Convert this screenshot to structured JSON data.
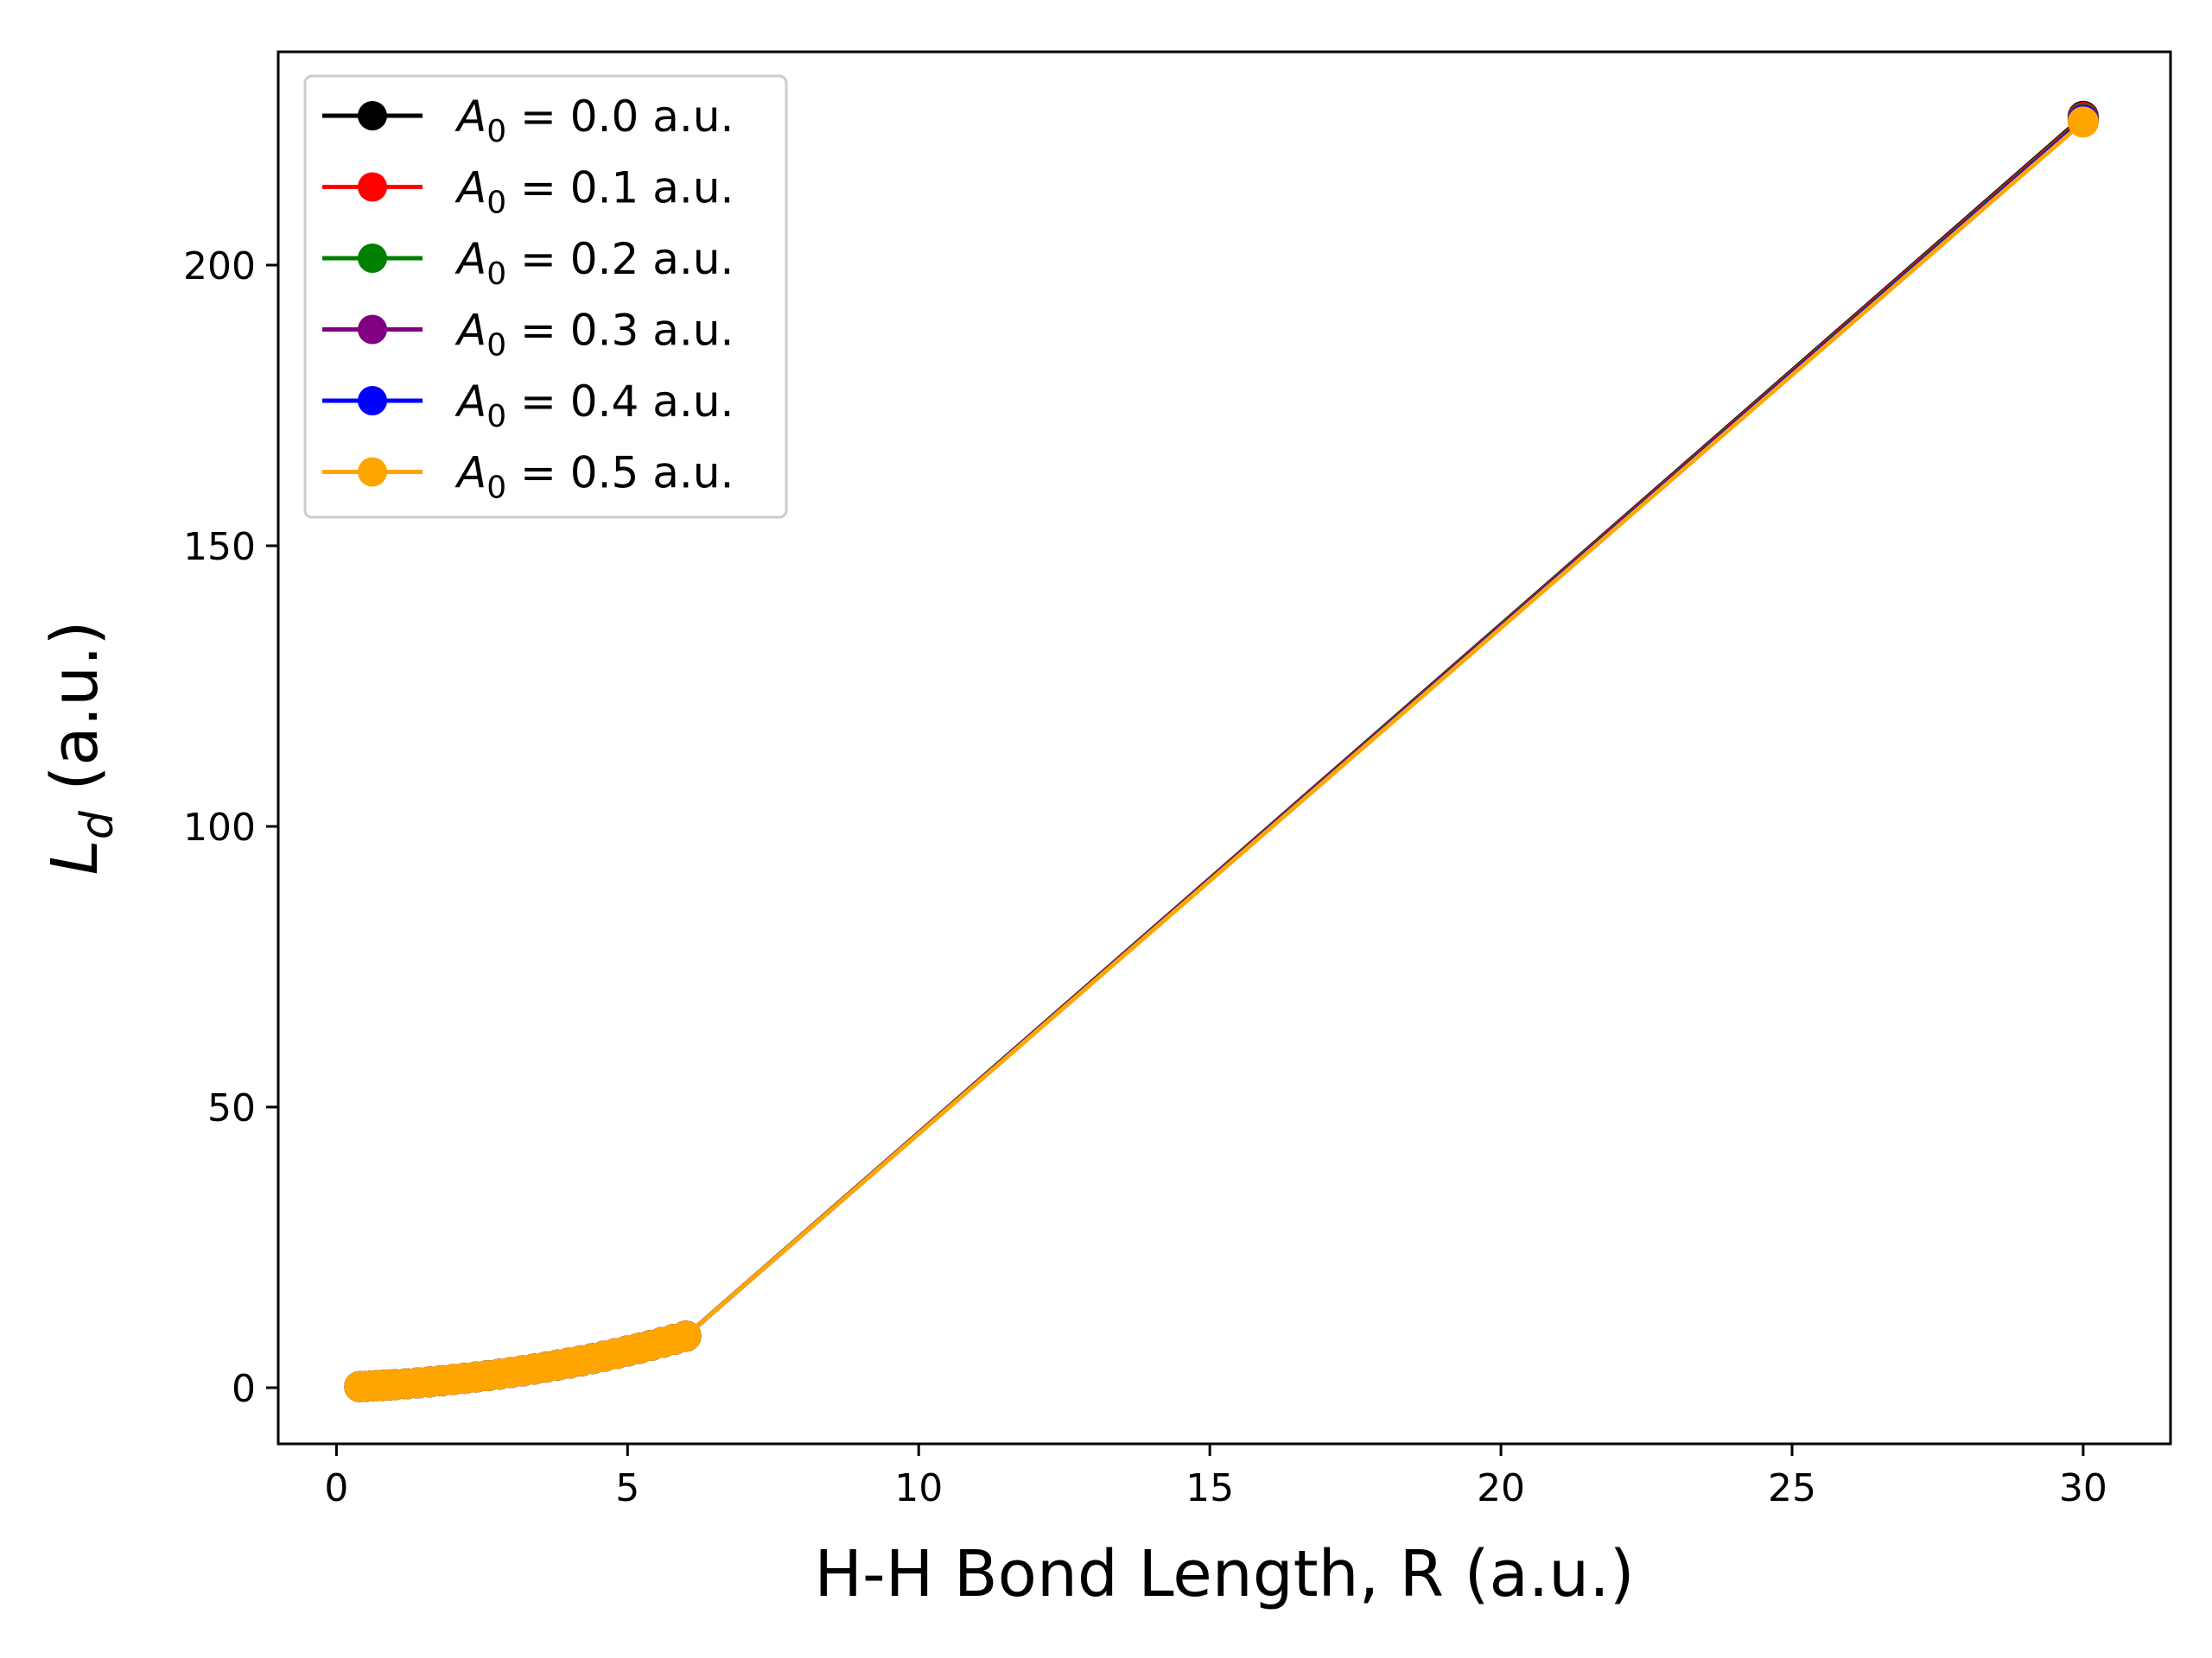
{
  "chart_data": {
    "type": "line",
    "xlabel": "H-H Bond Length, R (a.u.)",
    "ylabel": {
      "main": "L",
      "sub": "d",
      "suffix": " (a.u.)"
    },
    "xlim": [
      -1.0,
      31.5
    ],
    "ylim": [
      -10.0,
      238.0
    ],
    "xticks": [
      0,
      5,
      10,
      15,
      20,
      25,
      30
    ],
    "yticks": [
      0,
      50,
      100,
      150,
      200
    ],
    "grid": false,
    "legend_position": "upper-left",
    "x": [
      0.4,
      0.5,
      0.6,
      0.7,
      0.8,
      0.9,
      1.0,
      1.2,
      1.4,
      1.6,
      1.8,
      2.0,
      2.2,
      2.4,
      2.6,
      2.8,
      3.0,
      3.2,
      3.4,
      3.6,
      3.8,
      4.0,
      4.2,
      4.4,
      4.6,
      4.8,
      5.0,
      5.2,
      5.4,
      5.6,
      5.8,
      6.0,
      30.0
    ],
    "series": [
      {
        "name_prefix": "A",
        "name_sub": "0",
        "name_suffix": " = 0.0 a.u.",
        "color": "#000000",
        "values": [
          0.2,
          0.25,
          0.3,
          0.36,
          0.42,
          0.48,
          0.55,
          0.7,
          0.86,
          1.04,
          1.24,
          1.45,
          1.67,
          1.91,
          2.16,
          2.43,
          2.72,
          3.02,
          3.34,
          3.68,
          4.03,
          4.4,
          4.79,
          5.2,
          5.63,
          6.08,
          6.55,
          7.03,
          7.54,
          8.07,
          8.62,
          9.2,
          226.5
        ]
      },
      {
        "name_prefix": "A",
        "name_sub": "0",
        "name_suffix": " = 0.1 a.u.",
        "color": "#ff0000",
        "values": [
          0.2,
          0.25,
          0.3,
          0.36,
          0.42,
          0.48,
          0.55,
          0.7,
          0.86,
          1.04,
          1.24,
          1.45,
          1.67,
          1.91,
          2.16,
          2.43,
          2.72,
          3.02,
          3.34,
          3.68,
          4.03,
          4.4,
          4.79,
          5.2,
          5.63,
          6.08,
          6.55,
          7.03,
          7.54,
          8.07,
          8.62,
          9.2,
          226.3
        ]
      },
      {
        "name_prefix": "A",
        "name_sub": "0",
        "name_suffix": " = 0.2 a.u.",
        "color": "#008000",
        "values": [
          0.2,
          0.25,
          0.3,
          0.36,
          0.42,
          0.48,
          0.55,
          0.7,
          0.86,
          1.04,
          1.24,
          1.45,
          1.67,
          1.91,
          2.16,
          2.43,
          2.72,
          3.02,
          3.34,
          3.68,
          4.03,
          4.4,
          4.79,
          5.2,
          5.63,
          6.08,
          6.55,
          7.03,
          7.54,
          8.07,
          8.62,
          9.2,
          226.1
        ]
      },
      {
        "name_prefix": "A",
        "name_sub": "0",
        "name_suffix": " = 0.3 a.u.",
        "color": "#800080",
        "values": [
          0.2,
          0.25,
          0.3,
          0.36,
          0.42,
          0.48,
          0.55,
          0.7,
          0.86,
          1.04,
          1.24,
          1.45,
          1.67,
          1.91,
          2.16,
          2.43,
          2.72,
          3.02,
          3.34,
          3.68,
          4.03,
          4.4,
          4.79,
          5.2,
          5.63,
          6.08,
          6.55,
          7.03,
          7.54,
          8.07,
          8.62,
          9.2,
          225.9
        ]
      },
      {
        "name_prefix": "A",
        "name_sub": "0",
        "name_suffix": " = 0.4 a.u.",
        "color": "#0000ff",
        "values": [
          0.2,
          0.25,
          0.3,
          0.36,
          0.42,
          0.48,
          0.55,
          0.7,
          0.86,
          1.04,
          1.24,
          1.45,
          1.67,
          1.91,
          2.16,
          2.43,
          2.72,
          3.02,
          3.34,
          3.68,
          4.03,
          4.4,
          4.79,
          5.2,
          5.63,
          6.08,
          6.55,
          7.03,
          7.54,
          8.07,
          8.62,
          9.2,
          225.7
        ]
      },
      {
        "name_prefix": "A",
        "name_sub": "0",
        "name_suffix": " = 0.5 a.u.",
        "color": "#ffa500",
        "values": [
          0.2,
          0.25,
          0.3,
          0.36,
          0.42,
          0.48,
          0.55,
          0.7,
          0.86,
          1.04,
          1.24,
          1.45,
          1.67,
          1.91,
          2.16,
          2.43,
          2.72,
          3.02,
          3.34,
          3.68,
          4.03,
          4.4,
          4.79,
          5.2,
          5.63,
          6.08,
          6.55,
          7.03,
          7.54,
          8.07,
          8.62,
          9.2,
          225.5
        ]
      }
    ]
  }
}
